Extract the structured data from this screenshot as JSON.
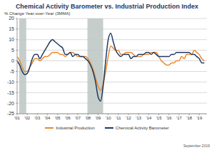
{
  "chart_data": {
    "type": "line",
    "title": "Chemical Activity Barometer vs. Industrial Production Index",
    "subtitle": "% Change Year-over-Year (3MMA)",
    "footnote": "September 2019",
    "x": [
      2001,
      2001.25,
      2001.5,
      2001.75,
      2002,
      2002.25,
      2002.5,
      2002.75,
      2003,
      2003.25,
      2003.5,
      2003.75,
      2004,
      2004.25,
      2004.5,
      2004.75,
      2005,
      2005.25,
      2005.5,
      2005.75,
      2006,
      2006.25,
      2006.5,
      2006.75,
      2007,
      2007.25,
      2007.5,
      2007.75,
      2008,
      2008.25,
      2008.5,
      2008.75,
      2009,
      2009.25,
      2009.5,
      2009.75,
      2010,
      2010.25,
      2010.5,
      2010.75,
      2011,
      2011.25,
      2011.5,
      2011.75,
      2012,
      2012.25,
      2012.5,
      2012.75,
      2013,
      2013.25,
      2013.5,
      2013.75,
      2014,
      2014.25,
      2014.5,
      2014.75,
      2015,
      2015.25,
      2015.5,
      2015.75,
      2016,
      2016.25,
      2016.5,
      2016.75,
      2017,
      2017.25,
      2017.5,
      2017.75,
      2018,
      2018.25,
      2018.5,
      2018.75,
      2019,
      2019.25,
      2019.5
    ],
    "series": [
      {
        "name": "Industrial Production",
        "color": "#e8892b",
        "values": [
          2,
          0,
          -3,
          -5,
          -5,
          -3,
          -1,
          1,
          1,
          0,
          1,
          2,
          2,
          3,
          4,
          4,
          4,
          3,
          3,
          2,
          3,
          4,
          4,
          3,
          2,
          2,
          2,
          2,
          1,
          -1,
          -4,
          -8,
          -12,
          -14,
          -11,
          -5,
          2,
          7,
          6,
          5,
          5,
          3,
          3,
          4,
          4,
          4,
          3,
          2,
          2,
          2,
          3,
          3,
          3,
          4,
          4,
          4,
          2,
          0,
          -1,
          -2,
          -2,
          -1,
          -1,
          0,
          0,
          2,
          1,
          3,
          3,
          3,
          5,
          4,
          3,
          1,
          0
        ]
      },
      {
        "name": "Chemical Activity Barometer",
        "color": "#1f3864",
        "values": [
          0,
          -2,
          -5,
          -6.5,
          -6,
          -3,
          1,
          3,
          3,
          1,
          3,
          5,
          7,
          9,
          10,
          9,
          8,
          7,
          6,
          3,
          3,
          4,
          2,
          3,
          3,
          2,
          2,
          1,
          0,
          -2,
          -5,
          -10,
          -17,
          -19,
          -12,
          0,
          10,
          13,
          9,
          5,
          3,
          2,
          3,
          3,
          3,
          1,
          2,
          2,
          3,
          3,
          3,
          4,
          4,
          3,
          4,
          3,
          2,
          2,
          2,
          2,
          2,
          3,
          3,
          4,
          4,
          4,
          4,
          4,
          4,
          3,
          3,
          2,
          1,
          -1,
          -1
        ]
      }
    ],
    "shaded_ranges": [
      [
        2001.2,
        2001.9
      ],
      [
        2007.95,
        2009.5
      ]
    ],
    "xlim": [
      2001,
      2019.75
    ],
    "xticks": [
      {
        "value": 2001,
        "label": "'01"
      },
      {
        "value": 2002,
        "label": "'02"
      },
      {
        "value": 2003,
        "label": "'03"
      },
      {
        "value": 2004,
        "label": "'04"
      },
      {
        "value": 2005,
        "label": "'05"
      },
      {
        "value": 2006,
        "label": "'06"
      },
      {
        "value": 2007,
        "label": "'07"
      },
      {
        "value": 2008,
        "label": "'08"
      },
      {
        "value": 2009,
        "label": "'09"
      },
      {
        "value": 2010,
        "label": "'10"
      },
      {
        "value": 2011,
        "label": "'11"
      },
      {
        "value": 2012,
        "label": "'12"
      },
      {
        "value": 2013,
        "label": "'13"
      },
      {
        "value": 2014,
        "label": "'14"
      },
      {
        "value": 2015,
        "label": "'15"
      },
      {
        "value": 2016,
        "label": "'16"
      },
      {
        "value": 2017,
        "label": "'17"
      },
      {
        "value": 2018,
        "label": "'18"
      },
      {
        "value": 2019,
        "label": "'19"
      }
    ],
    "ylim": [
      -25,
      20
    ],
    "yticks": [
      -25,
      -20,
      -15,
      -10,
      -5,
      0,
      5,
      10,
      15,
      20
    ],
    "grid": true,
    "legend": "bottom"
  }
}
